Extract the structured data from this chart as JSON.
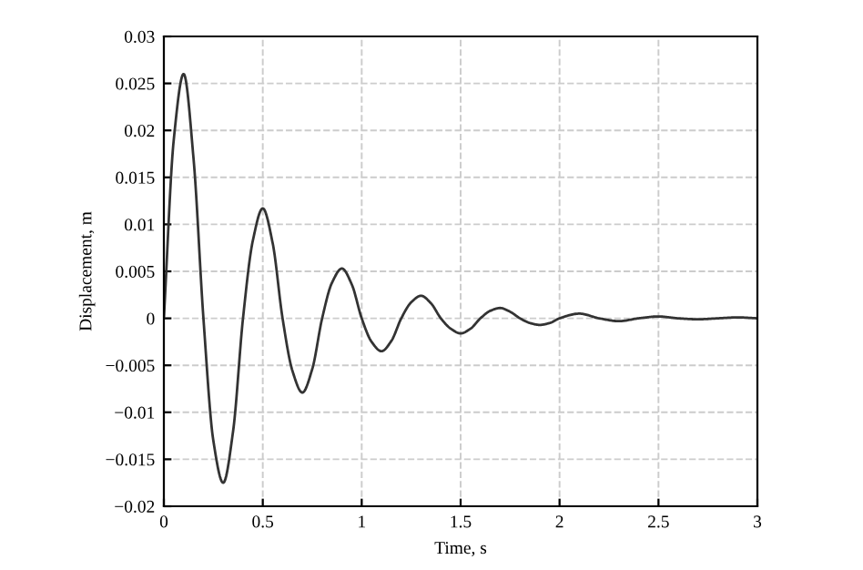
{
  "chart_data": {
    "type": "line",
    "xlabel": "Time, s",
    "ylabel": "Displacement, m",
    "x": [
      0,
      0.05,
      0.1,
      0.15,
      0.2,
      0.25,
      0.3,
      0.35,
      0.4,
      0.45,
      0.5,
      0.55,
      0.6,
      0.65,
      0.7,
      0.75,
      0.8,
      0.85,
      0.9,
      0.95,
      1.0,
      1.05,
      1.1,
      1.15,
      1.2,
      1.25,
      1.3,
      1.35,
      1.4,
      1.45,
      1.5,
      1.55,
      1.6,
      1.65,
      1.7,
      1.75,
      1.8,
      1.85,
      1.9,
      1.95,
      2.0,
      2.1,
      2.2,
      2.3,
      2.4,
      2.5,
      2.6,
      2.7,
      2.8,
      2.9,
      3.0
    ],
    "series": [
      {
        "color": "#333333",
        "values": [
          0,
          0.019,
          0.026,
          0.017,
          0,
          -0.013,
          -0.0175,
          -0.012,
          0,
          0.0083,
          0.0117,
          0.008,
          0,
          -0.0056,
          -0.0079,
          -0.0054,
          0,
          0.0038,
          0.0053,
          0.0036,
          0,
          -0.0025,
          -0.0035,
          -0.0024,
          0,
          0.0017,
          0.0024,
          0.0016,
          0,
          -0.0011,
          -0.0016,
          -0.0011,
          0,
          0.0008,
          0.0011,
          0.0007,
          0,
          -0.0005,
          -0.0007,
          -0.0005,
          0,
          0.0005,
          0,
          -0.0003,
          0,
          0.0002,
          0,
          -0.0001,
          0,
          0.0001,
          0
        ]
      }
    ],
    "xlim": [
      0,
      3
    ],
    "ylim": [
      -0.02,
      0.03
    ],
    "xticks": [
      0,
      0.5,
      1,
      1.5,
      2,
      2.5,
      3
    ],
    "yticks": [
      {
        "value": -0.02,
        "label": "−0.02"
      },
      {
        "value": -0.015,
        "label": "−0.015"
      },
      {
        "value": -0.01,
        "label": "−0.01"
      },
      {
        "value": -0.005,
        "label": "−0.005"
      },
      0,
      0.005,
      0.01,
      0.015,
      0.02,
      0.025,
      0.03
    ],
    "grid": true,
    "line_style": "solid",
    "marker": "none"
  }
}
